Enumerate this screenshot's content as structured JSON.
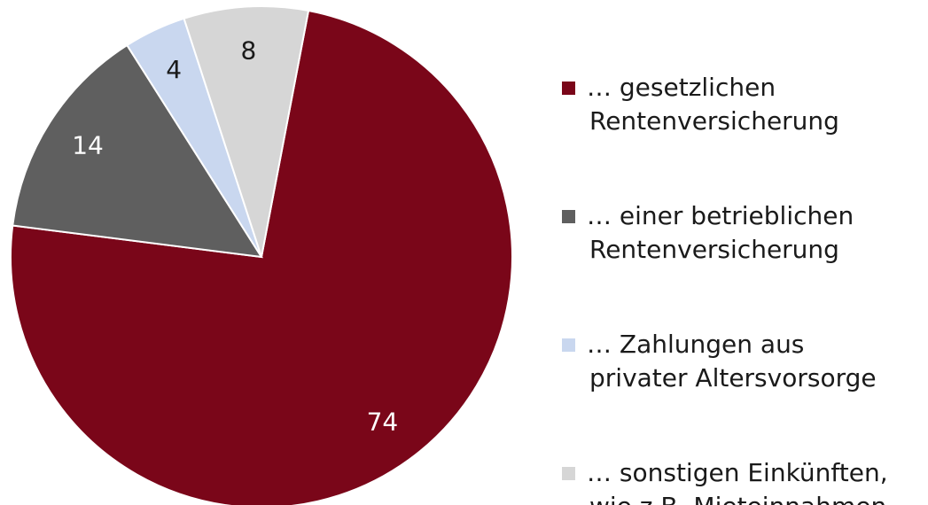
{
  "chart_data": {
    "type": "pie",
    "series": [
      {
        "name": "… gesetzlichen\nRentenversicherung",
        "color": "#7a0619",
        "values": [
          74
        ]
      },
      {
        "name": "… einer betrieblichen\nRentenversicherung",
        "color": "#5f5f5f",
        "values": [
          14
        ]
      },
      {
        "name": "…  Zahlungen aus\nprivater Altersvorsorge",
        "color": "#c9d7ef",
        "values": [
          4
        ]
      },
      {
        "name": "… sonstigen Einkünften,\nwie z.B. Mieteinnahmen",
        "color": "#d6d6d6",
        "values": [
          8
        ]
      }
    ],
    "label_colors": [
      "#ffffff",
      "#ffffff",
      "#1a1a1a",
      "#1a1a1a"
    ]
  }
}
